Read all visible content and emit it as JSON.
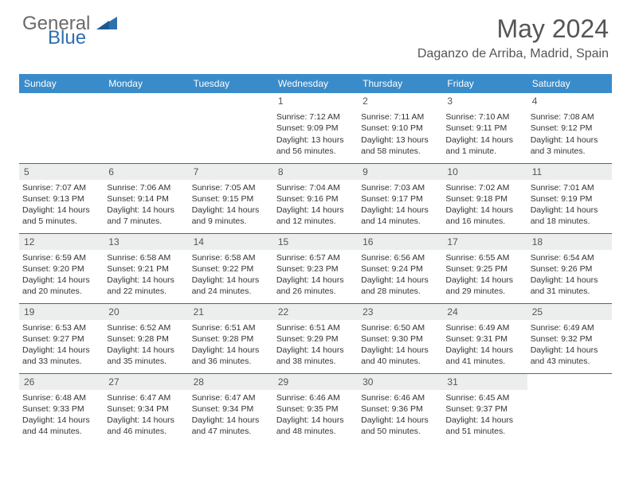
{
  "brand": {
    "word1": "General",
    "word2": "Blue",
    "color1": "#6a6a6a",
    "color2": "#2f6fae"
  },
  "title": "May 2024",
  "location": "Daganzo de Arriba, Madrid, Spain",
  "header_bg": "#3a8bc9",
  "header_fg": "#ffffff",
  "daynum_bg": "#eceded",
  "border_color": "#2f6fae",
  "day_names": [
    "Sunday",
    "Monday",
    "Tuesday",
    "Wednesday",
    "Thursday",
    "Friday",
    "Saturday"
  ],
  "weeks": [
    [
      null,
      null,
      null,
      {
        "n": "1",
        "sr": "7:12 AM",
        "ss": "9:09 PM",
        "dl": "13 hours and 56 minutes."
      },
      {
        "n": "2",
        "sr": "7:11 AM",
        "ss": "9:10 PM",
        "dl": "13 hours and 58 minutes."
      },
      {
        "n": "3",
        "sr": "7:10 AM",
        "ss": "9:11 PM",
        "dl": "14 hours and 1 minute."
      },
      {
        "n": "4",
        "sr": "7:08 AM",
        "ss": "9:12 PM",
        "dl": "14 hours and 3 minutes."
      }
    ],
    [
      {
        "n": "5",
        "sr": "7:07 AM",
        "ss": "9:13 PM",
        "dl": "14 hours and 5 minutes."
      },
      {
        "n": "6",
        "sr": "7:06 AM",
        "ss": "9:14 PM",
        "dl": "14 hours and 7 minutes."
      },
      {
        "n": "7",
        "sr": "7:05 AM",
        "ss": "9:15 PM",
        "dl": "14 hours and 9 minutes."
      },
      {
        "n": "8",
        "sr": "7:04 AM",
        "ss": "9:16 PM",
        "dl": "14 hours and 12 minutes."
      },
      {
        "n": "9",
        "sr": "7:03 AM",
        "ss": "9:17 PM",
        "dl": "14 hours and 14 minutes."
      },
      {
        "n": "10",
        "sr": "7:02 AM",
        "ss": "9:18 PM",
        "dl": "14 hours and 16 minutes."
      },
      {
        "n": "11",
        "sr": "7:01 AM",
        "ss": "9:19 PM",
        "dl": "14 hours and 18 minutes."
      }
    ],
    [
      {
        "n": "12",
        "sr": "6:59 AM",
        "ss": "9:20 PM",
        "dl": "14 hours and 20 minutes."
      },
      {
        "n": "13",
        "sr": "6:58 AM",
        "ss": "9:21 PM",
        "dl": "14 hours and 22 minutes."
      },
      {
        "n": "14",
        "sr": "6:58 AM",
        "ss": "9:22 PM",
        "dl": "14 hours and 24 minutes."
      },
      {
        "n": "15",
        "sr": "6:57 AM",
        "ss": "9:23 PM",
        "dl": "14 hours and 26 minutes."
      },
      {
        "n": "16",
        "sr": "6:56 AM",
        "ss": "9:24 PM",
        "dl": "14 hours and 28 minutes."
      },
      {
        "n": "17",
        "sr": "6:55 AM",
        "ss": "9:25 PM",
        "dl": "14 hours and 29 minutes."
      },
      {
        "n": "18",
        "sr": "6:54 AM",
        "ss": "9:26 PM",
        "dl": "14 hours and 31 minutes."
      }
    ],
    [
      {
        "n": "19",
        "sr": "6:53 AM",
        "ss": "9:27 PM",
        "dl": "14 hours and 33 minutes."
      },
      {
        "n": "20",
        "sr": "6:52 AM",
        "ss": "9:28 PM",
        "dl": "14 hours and 35 minutes."
      },
      {
        "n": "21",
        "sr": "6:51 AM",
        "ss": "9:28 PM",
        "dl": "14 hours and 36 minutes."
      },
      {
        "n": "22",
        "sr": "6:51 AM",
        "ss": "9:29 PM",
        "dl": "14 hours and 38 minutes."
      },
      {
        "n": "23",
        "sr": "6:50 AM",
        "ss": "9:30 PM",
        "dl": "14 hours and 40 minutes."
      },
      {
        "n": "24",
        "sr": "6:49 AM",
        "ss": "9:31 PM",
        "dl": "14 hours and 41 minutes."
      },
      {
        "n": "25",
        "sr": "6:49 AM",
        "ss": "9:32 PM",
        "dl": "14 hours and 43 minutes."
      }
    ],
    [
      {
        "n": "26",
        "sr": "6:48 AM",
        "ss": "9:33 PM",
        "dl": "14 hours and 44 minutes."
      },
      {
        "n": "27",
        "sr": "6:47 AM",
        "ss": "9:34 PM",
        "dl": "14 hours and 46 minutes."
      },
      {
        "n": "28",
        "sr": "6:47 AM",
        "ss": "9:34 PM",
        "dl": "14 hours and 47 minutes."
      },
      {
        "n": "29",
        "sr": "6:46 AM",
        "ss": "9:35 PM",
        "dl": "14 hours and 48 minutes."
      },
      {
        "n": "30",
        "sr": "6:46 AM",
        "ss": "9:36 PM",
        "dl": "14 hours and 50 minutes."
      },
      {
        "n": "31",
        "sr": "6:45 AM",
        "ss": "9:37 PM",
        "dl": "14 hours and 51 minutes."
      },
      null
    ]
  ],
  "labels": {
    "sunrise": "Sunrise:",
    "sunset": "Sunset:",
    "daylight": "Daylight:"
  }
}
